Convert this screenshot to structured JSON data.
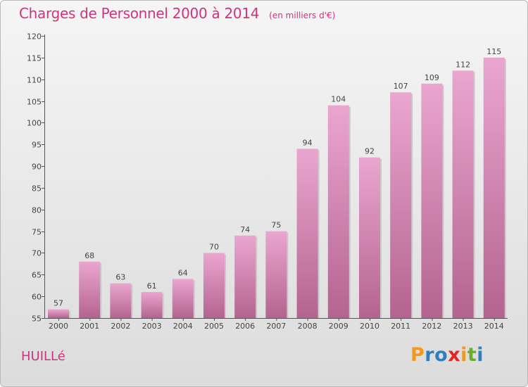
{
  "chart_data": {
    "type": "bar",
    "title": "Charges de Personnel 2000 à 2014",
    "subtitle": "(en milliers d'€)",
    "categories": [
      "2000",
      "2001",
      "2002",
      "2003",
      "2004",
      "2005",
      "2006",
      "2007",
      "2008",
      "2009",
      "2010",
      "2011",
      "2012",
      "2013",
      "2014"
    ],
    "values": [
      57,
      68,
      63,
      61,
      64,
      70,
      74,
      75,
      94,
      104,
      92,
      107,
      109,
      112,
      115
    ],
    "ylim": [
      55,
      120
    ],
    "yticks": [
      55,
      60,
      65,
      70,
      75,
      80,
      85,
      90,
      95,
      100,
      105,
      110,
      115,
      120
    ],
    "grid": false,
    "xlabel": "",
    "ylabel": ""
  },
  "commune": "HUILLé",
  "logo": {
    "letters": [
      {
        "char": "P",
        "color": "#f29a1f"
      },
      {
        "char": "r",
        "color": "#2e7fbf"
      },
      {
        "char": "o",
        "color": "#2e7fbf"
      },
      {
        "char": "x",
        "color": "#e2261d"
      },
      {
        "char": "i",
        "color": "#f29a1f"
      },
      {
        "char": "t",
        "color": "#6dab2f"
      },
      {
        "char": "i",
        "color": "#2e7fbf"
      }
    ]
  },
  "colors": {
    "accent": "#d0337d",
    "bar_top": "#eaa6cf",
    "bar_bottom": "#b3648f"
  }
}
